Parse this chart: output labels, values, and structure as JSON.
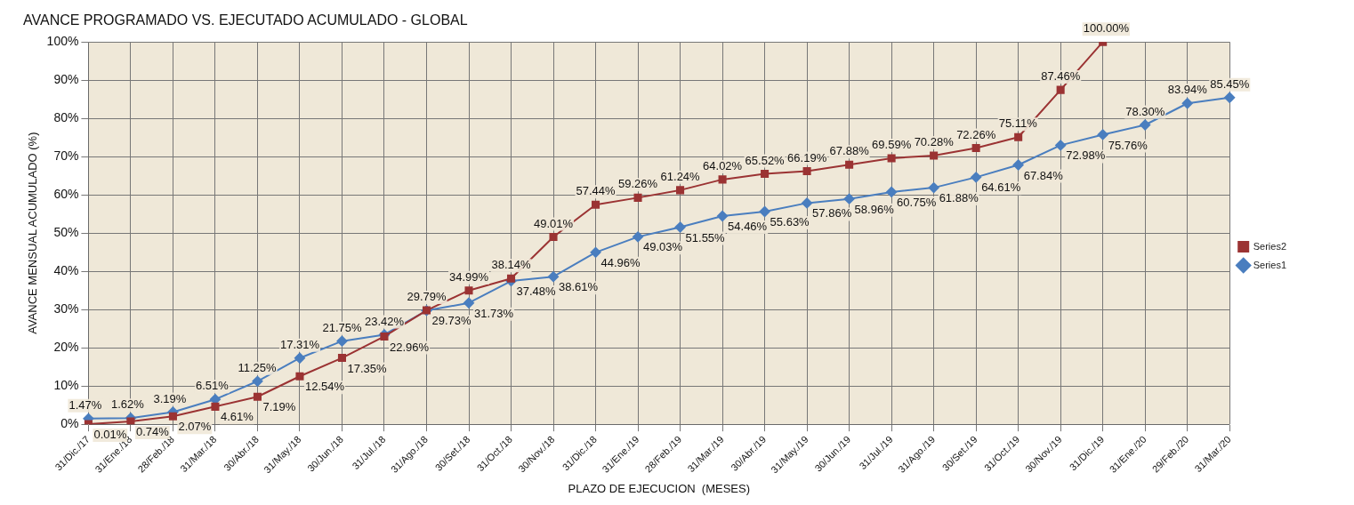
{
  "chart_data": {
    "type": "line",
    "title": "AVANCE PROGRAMADO VS. EJECUTADO ACUMULADO - GLOBAL",
    "xlabel": "PLAZO DE EJECUCION  (MESES)",
    "ylabel": "AVANCE MENSUAL ACUMULADO (%)",
    "categories": [
      "31/Dic./17",
      "31/Ene./18",
      "28/Feb./18",
      "31/Mar./18",
      "30/Abr./18",
      "31/May./18",
      "30/Jun./18",
      "31/Jul./18",
      "31/Ago./18",
      "30/Set./18",
      "31/Oct./18",
      "30/Nov./18",
      "31/Dic./18",
      "31/Ene./19",
      "28/Feb./19",
      "31/Mar./19",
      "30/Abr./19",
      "31/May./19",
      "30/Jun./19",
      "31/Jul./19",
      "31/Ago./19",
      "30/Set./19",
      "31/Oct./19",
      "30/Nov./19",
      "31/Dic./19",
      "31/Ene./20",
      "29/Feb./20",
      "31/Mar./20"
    ],
    "series": [
      {
        "name": "Series2",
        "color": "#9b3333",
        "marker": "square",
        "values": [
          0.01,
          0.74,
          2.07,
          4.61,
          7.19,
          12.54,
          17.35,
          22.96,
          29.79,
          34.99,
          38.14,
          49.01,
          57.44,
          59.26,
          61.24,
          64.02,
          65.52,
          66.19,
          67.88,
          69.59,
          70.28,
          72.26,
          75.11,
          87.46,
          100,
          null,
          null,
          null
        ],
        "value_labels": [
          "0.01%",
          "0.74%",
          "2.07%",
          "4.61%",
          "7.19%",
          "12.54%",
          "17.35%",
          "22.96%",
          "29.79%",
          "34.99%",
          "38.14%",
          "49.01%",
          "57.44%",
          "59.26%",
          "61.24%",
          "64.02%",
          "65.52%",
          "66.19%",
          "67.88%",
          "69.59%",
          "70.28%",
          "72.26%",
          "75.11%",
          "87.46%",
          "100.00%",
          null,
          null,
          null
        ]
      },
      {
        "name": "Series1",
        "color": "#4a7ebf",
        "marker": "diamond",
        "values": [
          1.47,
          1.62,
          3.19,
          6.51,
          11.25,
          17.31,
          21.75,
          23.42,
          29.73,
          31.73,
          37.48,
          38.61,
          44.96,
          49.03,
          51.55,
          54.46,
          55.63,
          57.86,
          58.96,
          60.75,
          61.88,
          64.61,
          67.84,
          72.98,
          75.76,
          78.3,
          83.94,
          85.45
        ],
        "value_labels": [
          "1.47%",
          "1.62%",
          "3.19%",
          "6.51%",
          "11.25%",
          "17.31%",
          "21.75%",
          "23.42%",
          "29.73%",
          "31.73%",
          "37.48%",
          "38.61%",
          "44.96%",
          "49.03%",
          "51.55%",
          "54.46%",
          "55.63%",
          "57.86%",
          "58.96%",
          "60.75%",
          "61.88%",
          "64.61%",
          "67.84%",
          "72.98%",
          "75.76%",
          "78.30%",
          "83.94%",
          "85.45%"
        ]
      }
    ],
    "ylim": [
      0,
      100
    ],
    "yticks": [
      {
        "value": 0,
        "label": "0%"
      },
      {
        "value": 10,
        "label": "10%"
      },
      {
        "value": 20,
        "label": "20%"
      },
      {
        "value": 30,
        "label": "30%"
      },
      {
        "value": 40,
        "label": "40%"
      },
      {
        "value": 50,
        "label": "50%"
      },
      {
        "value": 60,
        "label": "60%"
      },
      {
        "value": 70,
        "label": "70%"
      },
      {
        "value": 80,
        "label": "80%"
      },
      {
        "value": 90,
        "label": "90%"
      },
      {
        "value": 100,
        "label": "100%"
      }
    ],
    "grid": true,
    "legend": "right",
    "line_style": "solid"
  }
}
